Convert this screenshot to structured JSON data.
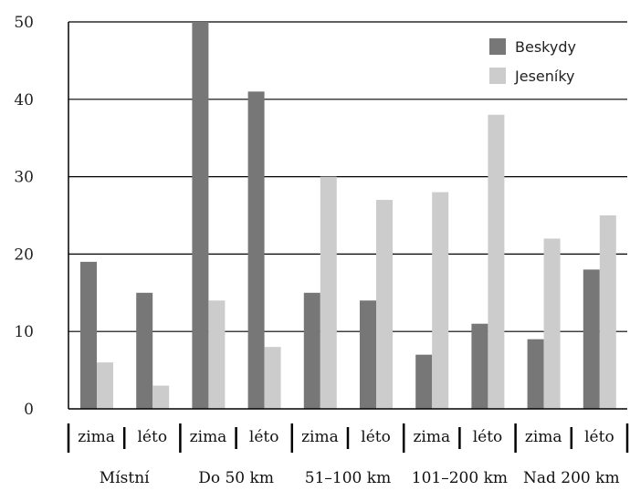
{
  "chart_data": {
    "type": "bar",
    "title": "",
    "xlabel": "",
    "ylabel": "",
    "ylim": [
      0,
      50
    ],
    "yticks": [
      0,
      10,
      20,
      30,
      40,
      50
    ],
    "grid": "horizontal",
    "legend_position": "top-right",
    "groups": [
      "Místní",
      "Do 50 km",
      "51–100 km",
      "101–200 km",
      "Nad 200 km"
    ],
    "categories": [
      "zima",
      "léto",
      "zima",
      "léto",
      "zima",
      "léto",
      "zima",
      "léto",
      "zima",
      "léto"
    ],
    "series": [
      {
        "name": "Beskydy",
        "color": "#777777",
        "values": [
          19,
          15,
          50,
          41,
          15,
          14,
          7,
          11,
          9,
          18
        ]
      },
      {
        "name": "Jeseníky",
        "color": "#cccccc",
        "values": [
          6,
          3,
          14,
          8,
          30,
          27,
          28,
          38,
          22,
          25
        ]
      }
    ]
  }
}
